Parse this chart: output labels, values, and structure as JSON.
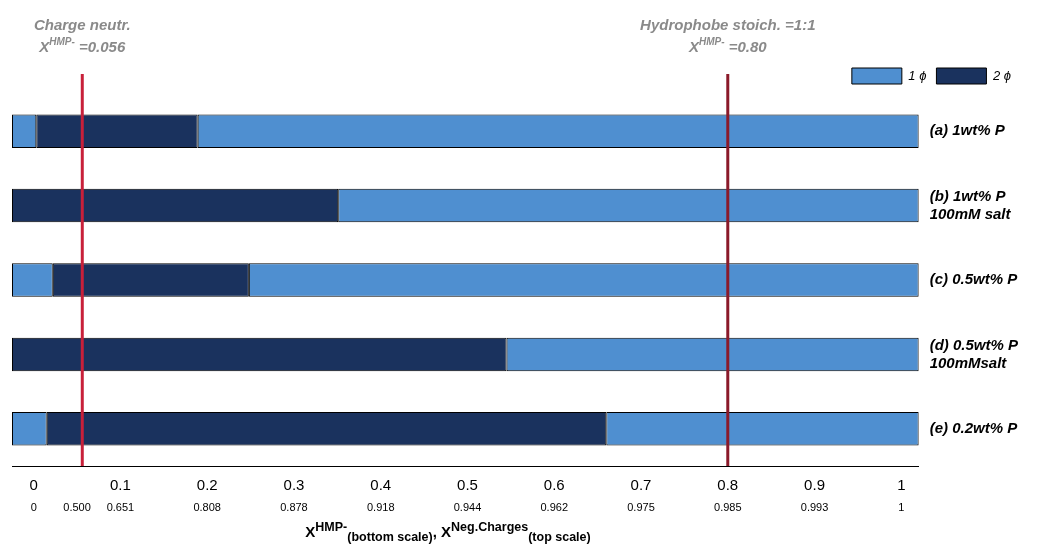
{
  "chart_data": {
    "type": "bar",
    "orientation": "horizontal",
    "categories": [
      "(a) 1wt% P",
      "(b) 1wt% P\n100mM salt",
      "(c) 0.5wt% P",
      "(d) 0.5wt% P\n100mMsalt",
      "(e) 0.2wt% P"
    ],
    "series": [
      {
        "name": "1 ϕ",
        "color": "#4f8fd0",
        "base": [
          -0.025,
          null,
          -0.025,
          null,
          -0.025
        ],
        "values": [
          0.028,
          null,
          0.047,
          null,
          0.04
        ]
      },
      {
        "name": "2 ϕ",
        "color": "#1a325e",
        "base": [
          0.003,
          -0.025,
          0.022,
          -0.025,
          0.015
        ],
        "values": [
          0.186,
          0.376,
          0.226,
          0.57,
          0.645
        ]
      },
      {
        "color": "#4f8fd0",
        "base": [
          0.189,
          0.351,
          0.248,
          0.545,
          0.66
        ],
        "values": [
          0.831,
          0.669,
          0.772,
          0.475,
          0.36
        ]
      }
    ],
    "xlim": [
      -0.025,
      1.02
    ],
    "xticks": [
      0,
      0.1,
      0.2,
      0.3,
      0.4,
      0.5,
      0.6,
      0.7,
      0.8,
      0.9,
      1
    ],
    "annotations": [
      "0",
      "0.500",
      "0.651",
      "0.808",
      "0.878",
      "0.918",
      "0.944",
      "0.962",
      "0.975",
      "0.985",
      "0.993",
      "1"
    ],
    "xlabel": "X$^{HMP-}$$_{(bottom scale)}$, X$^{Neg.Charges}$$_{(top scale)}$",
    "ref_lines": [
      {
        "axis": "x",
        "value": 0.056,
        "label": "Charge neutr.\nX$^{HMP-}$ =0.056",
        "color": "#c8203a"
      },
      {
        "axis": "x",
        "value": 0.8,
        "label": "Hydrophobe stoich. =1:1\nX$^{HMP-}$ =0.80",
        "color": "#8b1a2a"
      }
    ],
    "legend": "top right",
    "grid": false
  }
}
